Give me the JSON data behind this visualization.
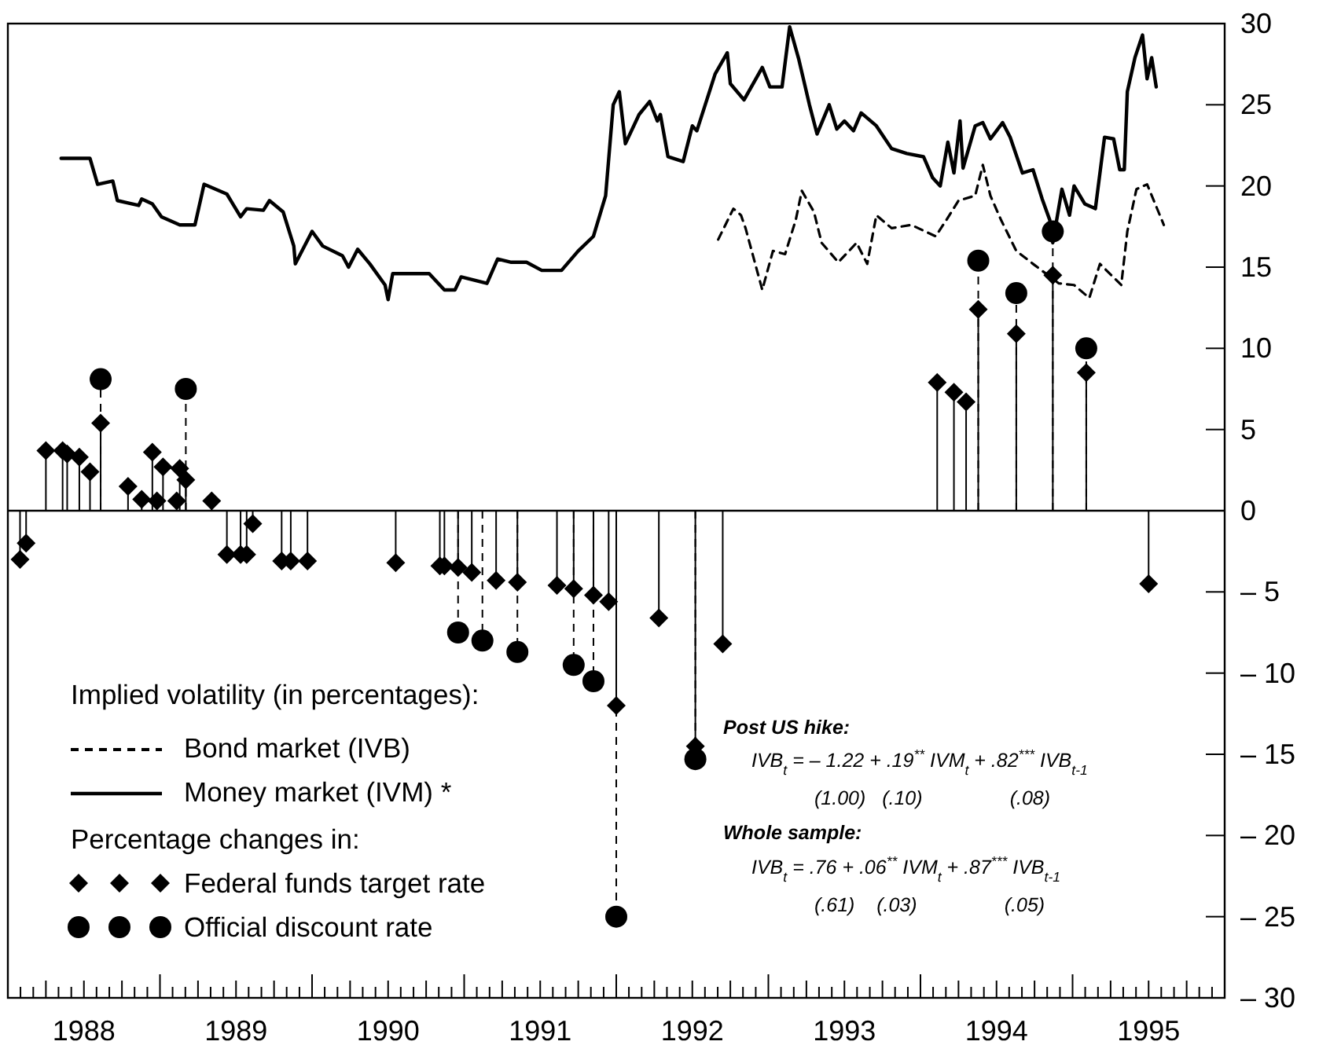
{
  "chart_data": {
    "type": "line",
    "xlim": [
      1988,
      1996
    ],
    "xticks": [
      {
        "value": 1988.083,
        "label": null
      },
      {
        "value": 1988.167,
        "label": null
      },
      {
        "value": 1988.25,
        "label": null
      },
      {
        "value": 1988.333,
        "label": null
      },
      {
        "value": 1988.417,
        "label": null
      },
      {
        "value": 1988.5,
        "label": "1988"
      },
      {
        "value": 1988.583,
        "label": null
      },
      {
        "value": 1988.667,
        "label": null
      },
      {
        "value": 1988.75,
        "label": null
      },
      {
        "value": 1988.833,
        "label": null
      },
      {
        "value": 1988.917,
        "label": null
      },
      {
        "value": 1989,
        "label": null
      },
      {
        "value": 1989.083,
        "label": null
      },
      {
        "value": 1989.167,
        "label": null
      },
      {
        "value": 1989.25,
        "label": null
      },
      {
        "value": 1989.333,
        "label": null
      },
      {
        "value": 1989.417,
        "label": null
      },
      {
        "value": 1989.5,
        "label": "1989"
      },
      {
        "value": 1989.583,
        "label": null
      },
      {
        "value": 1989.667,
        "label": null
      },
      {
        "value": 1989.75,
        "label": null
      },
      {
        "value": 1989.833,
        "label": null
      },
      {
        "value": 1989.917,
        "label": null
      },
      {
        "value": 1990,
        "label": null
      },
      {
        "value": 1990.083,
        "label": null
      },
      {
        "value": 1990.167,
        "label": null
      },
      {
        "value": 1990.25,
        "label": null
      },
      {
        "value": 1990.333,
        "label": null
      },
      {
        "value": 1990.417,
        "label": null
      },
      {
        "value": 1990.5,
        "label": "1990"
      },
      {
        "value": 1990.583,
        "label": null
      },
      {
        "value": 1990.667,
        "label": null
      },
      {
        "value": 1990.75,
        "label": null
      },
      {
        "value": 1990.833,
        "label": null
      },
      {
        "value": 1990.917,
        "label": null
      },
      {
        "value": 1991,
        "label": null
      },
      {
        "value": 1991.083,
        "label": null
      },
      {
        "value": 1991.167,
        "label": null
      },
      {
        "value": 1991.25,
        "label": null
      },
      {
        "value": 1991.333,
        "label": null
      },
      {
        "value": 1991.417,
        "label": null
      },
      {
        "value": 1991.5,
        "label": "1991"
      },
      {
        "value": 1991.583,
        "label": null
      },
      {
        "value": 1991.667,
        "label": null
      },
      {
        "value": 1991.75,
        "label": null
      },
      {
        "value": 1991.833,
        "label": null
      },
      {
        "value": 1991.917,
        "label": null
      },
      {
        "value": 1992,
        "label": null
      },
      {
        "value": 1992.083,
        "label": null
      },
      {
        "value": 1992.167,
        "label": null
      },
      {
        "value": 1992.25,
        "label": null
      },
      {
        "value": 1992.333,
        "label": null
      },
      {
        "value": 1992.417,
        "label": null
      },
      {
        "value": 1992.5,
        "label": "1992"
      },
      {
        "value": 1992.583,
        "label": null
      },
      {
        "value": 1992.667,
        "label": null
      },
      {
        "value": 1992.75,
        "label": null
      },
      {
        "value": 1992.833,
        "label": null
      },
      {
        "value": 1992.917,
        "label": null
      },
      {
        "value": 1993,
        "label": null
      },
      {
        "value": 1993.083,
        "label": null
      },
      {
        "value": 1993.167,
        "label": null
      },
      {
        "value": 1993.25,
        "label": null
      },
      {
        "value": 1993.333,
        "label": null
      },
      {
        "value": 1993.417,
        "label": null
      },
      {
        "value": 1993.5,
        "label": "1993"
      },
      {
        "value": 1993.583,
        "label": null
      },
      {
        "value": 1993.667,
        "label": null
      },
      {
        "value": 1993.75,
        "label": null
      },
      {
        "value": 1993.833,
        "label": null
      },
      {
        "value": 1993.917,
        "label": null
      },
      {
        "value": 1994,
        "label": null
      },
      {
        "value": 1994.083,
        "label": null
      },
      {
        "value": 1994.167,
        "label": null
      },
      {
        "value": 1994.25,
        "label": null
      },
      {
        "value": 1994.333,
        "label": null
      },
      {
        "value": 1994.417,
        "label": null
      },
      {
        "value": 1994.5,
        "label": "1994"
      },
      {
        "value": 1994.583,
        "label": null
      },
      {
        "value": 1994.667,
        "label": null
      },
      {
        "value": 1994.75,
        "label": null
      },
      {
        "value": 1994.833,
        "label": null
      },
      {
        "value": 1994.917,
        "label": null
      },
      {
        "value": 1995,
        "label": null
      },
      {
        "value": 1995.083,
        "label": null
      },
      {
        "value": 1995.167,
        "label": null
      },
      {
        "value": 1995.25,
        "label": null
      },
      {
        "value": 1995.333,
        "label": null
      },
      {
        "value": 1995.417,
        "label": null
      },
      {
        "value": 1995.5,
        "label": "1995"
      },
      {
        "value": 1995.583,
        "label": null
      },
      {
        "value": 1995.667,
        "label": null
      },
      {
        "value": 1995.75,
        "label": null
      },
      {
        "value": 1995.833,
        "label": null
      },
      {
        "value": 1995.917,
        "label": null
      }
    ],
    "ylim": [
      -30,
      30
    ],
    "yticks": [
      {
        "value": -30,
        "label": "– 30"
      },
      {
        "value": -25,
        "label": "– 25"
      },
      {
        "value": -20,
        "label": "– 20"
      },
      {
        "value": -15,
        "label": "– 15"
      },
      {
        "value": -10,
        "label": "– 10"
      },
      {
        "value": -5,
        "label": "– 5"
      },
      0,
      5,
      10,
      15,
      20,
      25,
      30
    ],
    "grid": false,
    "legend": "bottom left",
    "legend_title": "Implied volatility (in percentages):",
    "ref_lines": [
      {
        "axis": "y",
        "value": 0
      }
    ],
    "series": [
      {
        "name": "Bond market (IVB)",
        "type": "line",
        "line_style": "dashed",
        "marker": "none",
        "color": "#000000",
        "x": [
          1992.67,
          1992.77,
          1992.82,
          1992.85,
          1992.96,
          1993.03,
          1993.11,
          1993.18,
          1993.22,
          1993.3,
          1993.35,
          1993.46,
          1993.58,
          1993.65,
          1993.71,
          1993.81,
          1993.94,
          1994.1,
          1994.17,
          1994.25,
          1994.36,
          1994.41,
          1994.46,
          1994.53,
          1994.63,
          1994.74,
          1994.91,
          1995.01,
          1995.11,
          1995.18,
          1995.32,
          1995.36,
          1995.42,
          1995.49,
          1995.6
        ],
        "values": [
          16.7,
          18.6,
          18.2,
          17.4,
          13.6,
          16.0,
          15.8,
          17.9,
          19.7,
          18.4,
          16.5,
          15.3,
          16.5,
          15.2,
          18.2,
          17.4,
          17.6,
          16.9,
          17.9,
          19.1,
          19.4,
          21.3,
          19.4,
          17.9,
          16.0,
          15.2,
          14.0,
          13.9,
          13.1,
          15.2,
          13.9,
          17.2,
          19.8,
          20.1,
          17.6
        ]
      },
      {
        "name": "Money market (IVM) *",
        "type": "line",
        "line_style": "solid",
        "marker": "none",
        "color": "#000000",
        "x": [
          1988.35,
          1988.54,
          1988.59,
          1988.69,
          1988.72,
          1988.86,
          1988.88,
          1988.95,
          1989.01,
          1989.13,
          1989.23,
          1989.29,
          1989.44,
          1989.53,
          1989.57,
          1989.68,
          1989.72,
          1989.81,
          1989.88,
          1989.89,
          1990.0,
          1990.07,
          1990.2,
          1990.24,
          1990.3,
          1990.38,
          1990.48,
          1990.5,
          1990.53,
          1990.77,
          1990.87,
          1990.94,
          1990.98,
          1991.15,
          1991.22,
          1991.31,
          1991.41,
          1991.51,
          1991.64,
          1991.75,
          1991.85,
          1991.93,
          1991.98,
          1992.02,
          1992.06,
          1992.15,
          1992.22,
          1992.27,
          1992.29,
          1992.34,
          1992.44,
          1992.5,
          1992.53,
          1992.65,
          1992.73,
          1992.75,
          1992.84,
          1992.96,
          1993.01,
          1993.09,
          1993.14,
          1993.2,
          1993.27,
          1993.32,
          1993.4,
          1993.45,
          1993.5,
          1993.56,
          1993.61,
          1993.71,
          1993.81,
          1993.91,
          1994.02,
          1994.08,
          1994.13,
          1994.18,
          1994.22,
          1994.26,
          1994.28,
          1994.36,
          1994.41,
          1994.46,
          1994.54,
          1994.59,
          1994.67,
          1994.74,
          1994.8,
          1994.85,
          1994.87,
          1994.93,
          1994.98,
          1995.01,
          1995.08,
          1995.15,
          1995.21,
          1995.27,
          1995.31,
          1995.34,
          1995.36,
          1995.41,
          1995.46,
          1995.49,
          1995.52,
          1995.55
        ],
        "values": [
          21.7,
          21.7,
          20.1,
          20.3,
          19.1,
          18.8,
          19.2,
          18.9,
          18.1,
          17.6,
          17.6,
          20.1,
          19.5,
          18.1,
          18.6,
          18.5,
          19.1,
          18.4,
          16.3,
          15.2,
          17.2,
          16.3,
          15.7,
          15.0,
          16.1,
          15.2,
          13.9,
          13.0,
          14.6,
          14.6,
          13.6,
          13.6,
          14.4,
          14.0,
          15.5,
          15.3,
          15.3,
          14.8,
          14.8,
          16.0,
          16.9,
          19.4,
          25.0,
          25.8,
          22.6,
          24.4,
          25.2,
          24.0,
          24.4,
          21.8,
          21.5,
          23.7,
          23.4,
          26.9,
          28.2,
          26.3,
          25.3,
          27.3,
          26.1,
          26.1,
          29.8,
          27.8,
          25.0,
          23.2,
          25.0,
          23.5,
          24.0,
          23.4,
          24.5,
          23.7,
          22.3,
          22.0,
          21.8,
          20.5,
          20.0,
          22.7,
          20.8,
          24.0,
          21.1,
          23.7,
          23.9,
          22.9,
          23.9,
          23.0,
          20.8,
          21.0,
          19.2,
          17.9,
          16.5,
          19.8,
          18.2,
          20.0,
          18.9,
          18.6,
          23.0,
          22.9,
          21.0,
          21.0,
          25.8,
          27.9,
          29.3,
          26.6,
          27.9,
          26.1
        ]
      },
      {
        "name": "Federal funds target rate",
        "type": "lollipop",
        "marker": "diamond",
        "line_style": "solid",
        "color": "#000000",
        "x": [
          1988.08,
          1988.12,
          1988.25,
          1988.36,
          1988.39,
          1988.47,
          1988.54,
          1988.61,
          1988.79,
          1988.88,
          1988.95,
          1988.98,
          1989.02,
          1989.11,
          1989.13,
          1989.17,
          1989.34,
          1989.44,
          1989.53,
          1989.57,
          1989.61,
          1989.8,
          1989.86,
          1989.97,
          1990.55,
          1990.84,
          1990.87,
          1990.96,
          1991.05,
          1991.21,
          1991.35,
          1991.61,
          1991.72,
          1991.85,
          1991.95,
          1992.0,
          1992.28,
          1992.52,
          1992.7,
          1994.11,
          1994.22,
          1994.3,
          1994.38,
          1994.63,
          1994.87,
          1995.09,
          1995.5
        ],
        "values": [
          -3.0,
          -2.0,
          3.7,
          3.7,
          3.5,
          3.3,
          2.4,
          5.4,
          1.5,
          0.7,
          3.6,
          0.6,
          2.7,
          0.6,
          2.6,
          1.9,
          0.6,
          -2.7,
          -2.7,
          -2.7,
          -0.8,
          -3.1,
          -3.1,
          -3.1,
          -3.2,
          -3.4,
          -3.4,
          -3.5,
          -3.8,
          -4.3,
          -4.4,
          -4.6,
          -4.8,
          -5.2,
          -5.6,
          -12.0,
          -6.6,
          -14.5,
          -8.2,
          7.9,
          7.3,
          6.7,
          12.4,
          10.9,
          14.5,
          8.5,
          -4.5
        ]
      },
      {
        "name": "Official discount rate",
        "type": "lollipop",
        "marker": "circle",
        "line_style": "dashed",
        "color": "#000000",
        "x": [
          1988.61,
          1989.17,
          1990.96,
          1991.12,
          1991.35,
          1991.72,
          1991.85,
          1992.0,
          1992.52,
          1994.38,
          1994.63,
          1994.87,
          1995.09
        ],
        "values": [
          8.1,
          7.5,
          -7.5,
          -8.0,
          -8.7,
          -9.5,
          -10.5,
          -25.0,
          -15.3,
          15.4,
          13.4,
          17.2,
          10.0
        ]
      }
    ],
    "annotations": [
      "Percentage changes in:",
      "Post US hike:",
      "IVB$_{t}$ = – 1.22 + .19$^{**}$ IVM$_{t}$ + .82$^{***}$ IVB$_{t-1}$",
      "(1.00)   (.10)                (.08)",
      "Whole sample:",
      "IVB$_{t}$ = .76 + .06$^{**}$ IVM$_{t}$ + .87$^{***}$ IVB$_{t-1}$",
      "(.61)    (.03)                (.05)"
    ]
  }
}
